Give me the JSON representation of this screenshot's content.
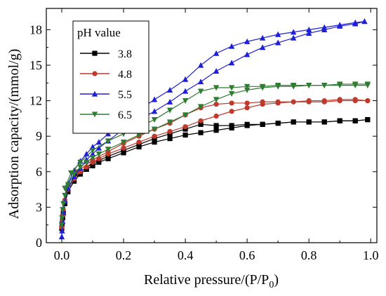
{
  "chart_data": {
    "type": "line",
    "xlabel": "Relative pressure/(P/P",
    "xlabel_sub": "0",
    "xlabel_suffix": ")",
    "ylabel": "Adsorption capacity/(mmol/g)",
    "xlim": [
      -0.05,
      1.02
    ],
    "ylim": [
      0,
      19.8
    ],
    "xticks": [
      0.0,
      0.2,
      0.4,
      0.6,
      0.8,
      1.0
    ],
    "xtick_labels": [
      "0.0",
      "0.2",
      "0.4",
      "0.6",
      "0.8",
      "1.0"
    ],
    "yticks": [
      0,
      3,
      6,
      9,
      12,
      15,
      18
    ],
    "ytick_labels": [
      "0",
      "3",
      "6",
      "9",
      "12",
      "15",
      "18"
    ],
    "grid": false,
    "legend": {
      "title": "pH value",
      "placement": "top-left"
    },
    "series": [
      {
        "name": "3.8",
        "color": "#000000",
        "marker": "square",
        "adsorption": [
          [
            0.0,
            1.2
          ],
          [
            0.001,
            1.6
          ],
          [
            0.003,
            2.1
          ],
          [
            0.005,
            2.5
          ],
          [
            0.01,
            3.3
          ],
          [
            0.02,
            4.3
          ],
          [
            0.04,
            5.2
          ],
          [
            0.06,
            5.8
          ],
          [
            0.08,
            6.2
          ],
          [
            0.1,
            6.5
          ],
          [
            0.12,
            6.8
          ],
          [
            0.15,
            7.1
          ],
          [
            0.2,
            7.6
          ],
          [
            0.25,
            8.1
          ],
          [
            0.3,
            8.5
          ],
          [
            0.35,
            8.8
          ],
          [
            0.4,
            9.1
          ],
          [
            0.45,
            9.3
          ],
          [
            0.5,
            9.5
          ],
          [
            0.55,
            9.7
          ],
          [
            0.6,
            9.9
          ],
          [
            0.65,
            10.0
          ],
          [
            0.7,
            10.1
          ],
          [
            0.75,
            10.2
          ],
          [
            0.8,
            10.2
          ],
          [
            0.85,
            10.2
          ],
          [
            0.9,
            10.3
          ],
          [
            0.95,
            10.3
          ],
          [
            0.99,
            10.4
          ]
        ],
        "desorption": [
          [
            0.99,
            10.4
          ],
          [
            0.95,
            10.3
          ],
          [
            0.9,
            10.3
          ],
          [
            0.85,
            10.2
          ],
          [
            0.8,
            10.2
          ],
          [
            0.75,
            10.2
          ],
          [
            0.7,
            10.1
          ],
          [
            0.65,
            10.0
          ],
          [
            0.6,
            10.0
          ],
          [
            0.55,
            9.9
          ],
          [
            0.5,
            9.9
          ],
          [
            0.45,
            10.0
          ],
          [
            0.4,
            9.6
          ],
          [
            0.35,
            9.2
          ],
          [
            0.3,
            8.8
          ],
          [
            0.25,
            8.3
          ],
          [
            0.2,
            7.8
          ],
          [
            0.15,
            7.3
          ],
          [
            0.1,
            6.7
          ],
          [
            0.05,
            5.8
          ]
        ]
      },
      {
        "name": "4.8",
        "color": "#c0392b",
        "marker": "circle",
        "adsorption": [
          [
            0.0,
            1.3
          ],
          [
            0.001,
            1.8
          ],
          [
            0.003,
            2.3
          ],
          [
            0.005,
            2.8
          ],
          [
            0.01,
            3.6
          ],
          [
            0.02,
            4.5
          ],
          [
            0.04,
            5.4
          ],
          [
            0.06,
            6.0
          ],
          [
            0.08,
            6.4
          ],
          [
            0.1,
            6.8
          ],
          [
            0.12,
            7.1
          ],
          [
            0.15,
            7.5
          ],
          [
            0.2,
            8.0
          ],
          [
            0.25,
            8.5
          ],
          [
            0.3,
            9.0
          ],
          [
            0.35,
            9.4
          ],
          [
            0.4,
            9.8
          ],
          [
            0.45,
            10.3
          ],
          [
            0.5,
            10.7
          ],
          [
            0.55,
            11.1
          ],
          [
            0.6,
            11.4
          ],
          [
            0.65,
            11.7
          ],
          [
            0.7,
            11.8
          ],
          [
            0.75,
            11.9
          ],
          [
            0.8,
            11.9
          ],
          [
            0.85,
            11.9
          ],
          [
            0.9,
            12.0
          ],
          [
            0.95,
            12.0
          ],
          [
            0.99,
            12.0
          ]
        ],
        "desorption": [
          [
            0.99,
            12.0
          ],
          [
            0.95,
            12.1
          ],
          [
            0.9,
            12.1
          ],
          [
            0.85,
            12.0
          ],
          [
            0.8,
            12.0
          ],
          [
            0.75,
            11.9
          ],
          [
            0.7,
            11.9
          ],
          [
            0.65,
            11.9
          ],
          [
            0.6,
            11.8
          ],
          [
            0.55,
            11.8
          ],
          [
            0.5,
            11.7
          ],
          [
            0.45,
            11.4
          ],
          [
            0.4,
            10.8
          ],
          [
            0.35,
            10.1
          ],
          [
            0.3,
            9.6
          ],
          [
            0.25,
            9.0
          ],
          [
            0.2,
            8.4
          ],
          [
            0.15,
            7.7
          ],
          [
            0.1,
            7.0
          ],
          [
            0.05,
            6.0
          ]
        ]
      },
      {
        "name": "5.5",
        "color": "#1f1fd8",
        "marker": "triangle-up",
        "adsorption": [
          [
            0.0,
            0.5
          ],
          [
            0.001,
            1.0
          ],
          [
            0.003,
            1.8
          ],
          [
            0.005,
            2.6
          ],
          [
            0.01,
            3.5
          ],
          [
            0.02,
            4.6
          ],
          [
            0.04,
            5.6
          ],
          [
            0.06,
            6.3
          ],
          [
            0.08,
            7.0
          ],
          [
            0.1,
            7.5
          ],
          [
            0.12,
            8.0
          ],
          [
            0.15,
            8.6
          ],
          [
            0.2,
            9.6
          ],
          [
            0.25,
            10.4
          ],
          [
            0.3,
            11.1
          ],
          [
            0.35,
            11.9
          ],
          [
            0.4,
            12.8
          ],
          [
            0.45,
            13.6
          ],
          [
            0.5,
            14.5
          ],
          [
            0.55,
            15.2
          ],
          [
            0.6,
            15.9
          ],
          [
            0.65,
            16.5
          ],
          [
            0.7,
            16.9
          ],
          [
            0.75,
            17.3
          ],
          [
            0.8,
            17.7
          ],
          [
            0.85,
            18.0
          ],
          [
            0.9,
            18.3
          ],
          [
            0.95,
            18.5
          ],
          [
            0.98,
            18.7
          ]
        ],
        "desorption": [
          [
            0.98,
            18.7
          ],
          [
            0.95,
            18.6
          ],
          [
            0.9,
            18.4
          ],
          [
            0.85,
            18.2
          ],
          [
            0.8,
            18.0
          ],
          [
            0.75,
            17.8
          ],
          [
            0.7,
            17.6
          ],
          [
            0.65,
            17.3
          ],
          [
            0.6,
            17.0
          ],
          [
            0.55,
            16.6
          ],
          [
            0.5,
            16.0
          ],
          [
            0.45,
            15.0
          ],
          [
            0.4,
            13.8
          ],
          [
            0.35,
            12.9
          ],
          [
            0.3,
            12.1
          ],
          [
            0.25,
            11.2
          ],
          [
            0.2,
            10.3
          ],
          [
            0.15,
            9.2
          ],
          [
            0.12,
            8.5
          ],
          [
            0.1,
            8.1
          ],
          [
            0.08,
            7.5
          ],
          [
            0.06,
            6.9
          ],
          [
            0.04,
            6.1
          ],
          [
            0.02,
            5.0
          ]
        ]
      },
      {
        "name": "6.5",
        "color": "#2e7d32",
        "marker": "triangle-down",
        "adsorption": [
          [
            0.0,
            1.5
          ],
          [
            0.001,
            2.1
          ],
          [
            0.003,
            2.8
          ],
          [
            0.005,
            3.3
          ],
          [
            0.01,
            4.0
          ],
          [
            0.02,
            4.9
          ],
          [
            0.04,
            5.8
          ],
          [
            0.06,
            6.4
          ],
          [
            0.08,
            6.8
          ],
          [
            0.1,
            7.2
          ],
          [
            0.12,
            7.5
          ],
          [
            0.15,
            7.9
          ],
          [
            0.2,
            8.5
          ],
          [
            0.25,
            9.1
          ],
          [
            0.3,
            9.6
          ],
          [
            0.35,
            10.2
          ],
          [
            0.4,
            10.8
          ],
          [
            0.45,
            11.5
          ],
          [
            0.5,
            12.1
          ],
          [
            0.55,
            12.6
          ],
          [
            0.6,
            12.9
          ],
          [
            0.65,
            13.1
          ],
          [
            0.7,
            13.2
          ],
          [
            0.75,
            13.2
          ],
          [
            0.8,
            13.3
          ],
          [
            0.85,
            13.3
          ],
          [
            0.9,
            13.3
          ],
          [
            0.95,
            13.3
          ],
          [
            0.99,
            13.3
          ]
        ],
        "desorption": [
          [
            0.99,
            13.4
          ],
          [
            0.95,
            13.4
          ],
          [
            0.9,
            13.4
          ],
          [
            0.85,
            13.3
          ],
          [
            0.8,
            13.3
          ],
          [
            0.75,
            13.3
          ],
          [
            0.7,
            13.3
          ],
          [
            0.65,
            13.2
          ],
          [
            0.6,
            13.2
          ],
          [
            0.55,
            13.1
          ],
          [
            0.5,
            13.1
          ],
          [
            0.45,
            12.8
          ],
          [
            0.4,
            12.0
          ],
          [
            0.35,
            11.2
          ],
          [
            0.3,
            10.4
          ],
          [
            0.25,
            9.8
          ],
          [
            0.2,
            9.2
          ],
          [
            0.15,
            8.6
          ],
          [
            0.1,
            7.8
          ],
          [
            0.06,
            6.8
          ],
          [
            0.03,
            5.9
          ],
          [
            0.01,
            4.6
          ]
        ]
      }
    ]
  }
}
